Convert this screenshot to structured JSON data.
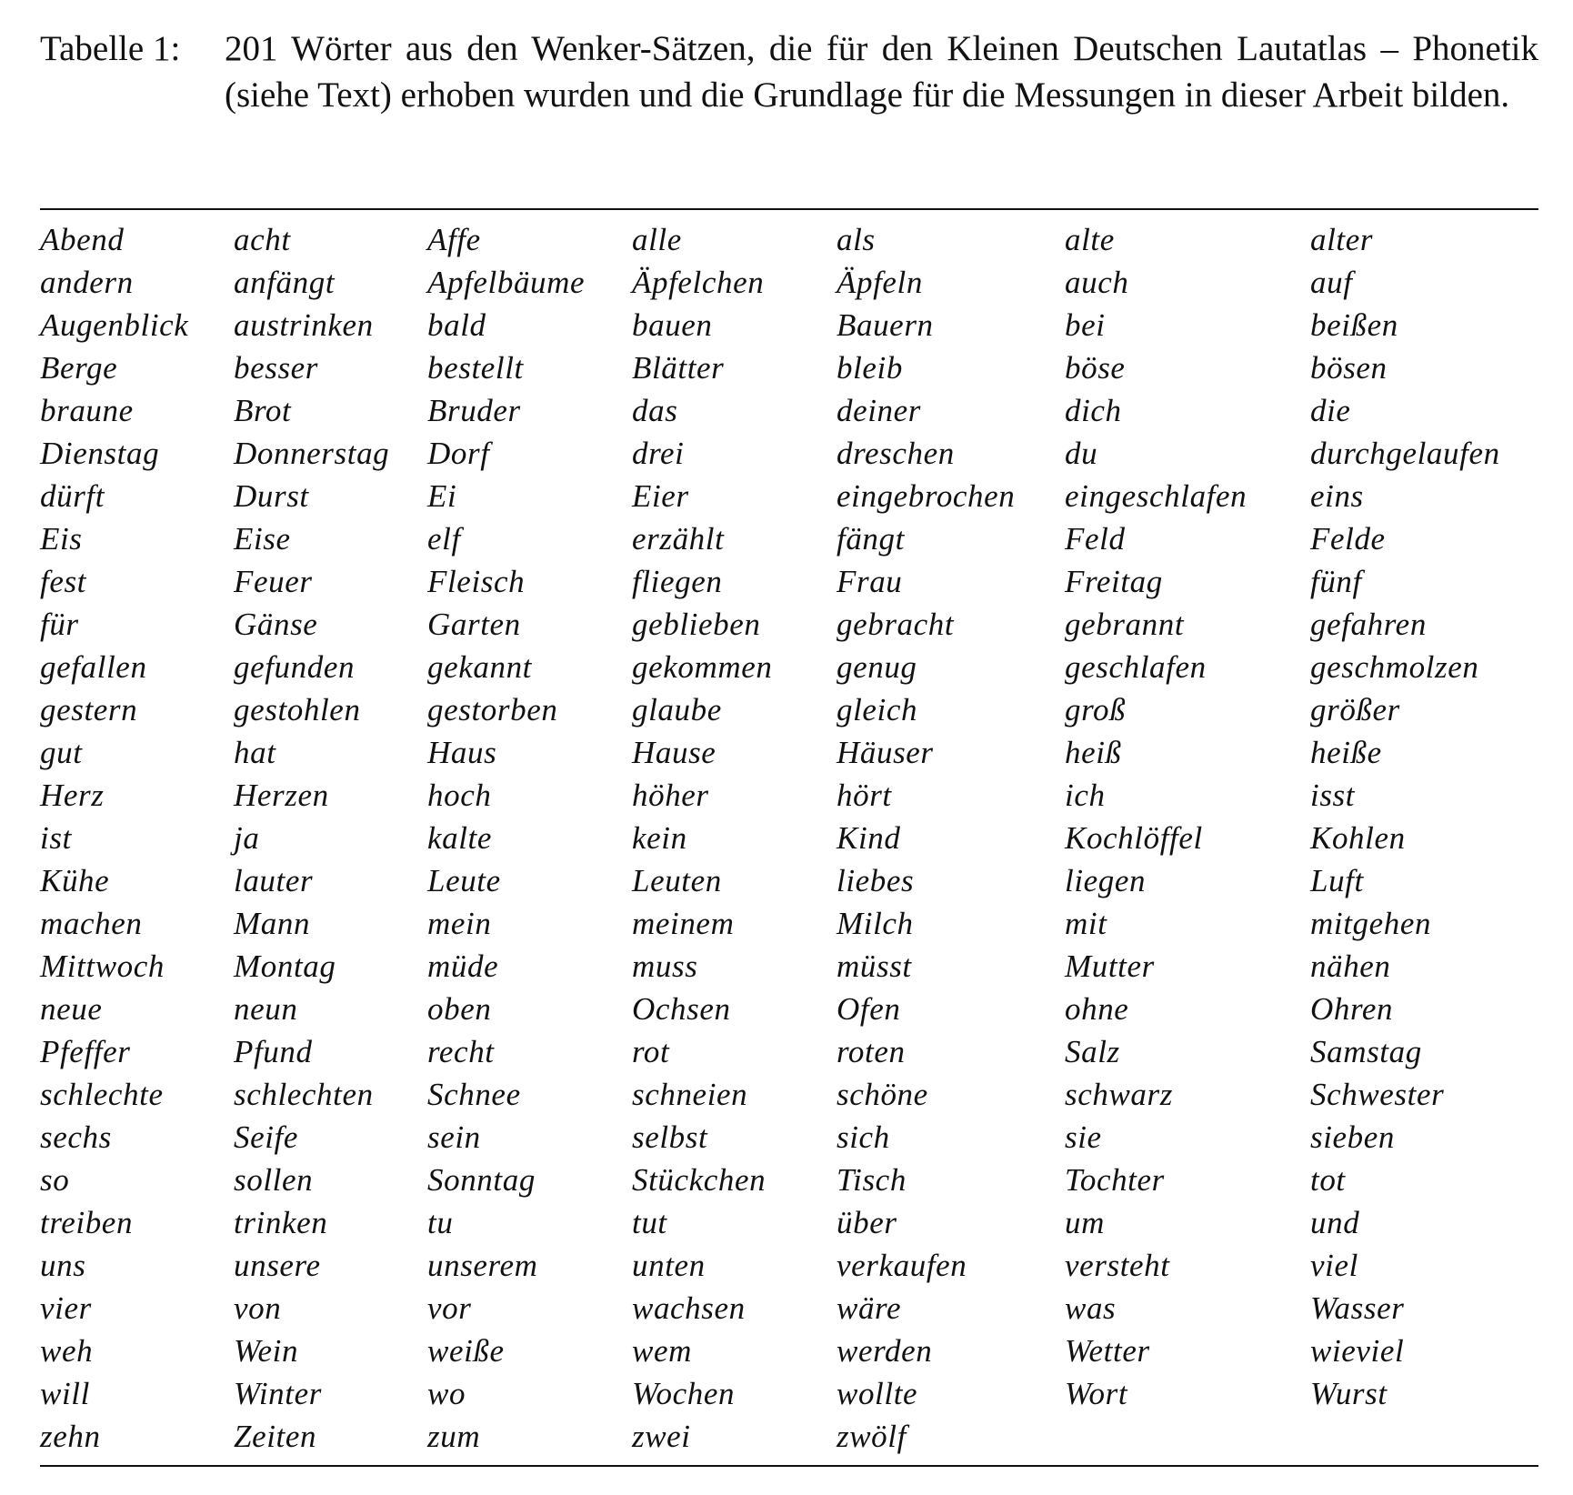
{
  "caption": {
    "label": "Tabelle 1:",
    "text": "201 Wörter aus den Wenker-Sätzen, die für den Kleinen Deutschen Lautatlas – Phonetik (siehe Text) erhoben wurden und die Grundlage für die Messungen in dieser Arbeit bilden."
  },
  "words": [
    [
      "Abend",
      "acht",
      "Affe",
      "alle",
      "als",
      "alte",
      "alter"
    ],
    [
      "andern",
      "anfängt",
      "Apfelbäume",
      "Äpfelchen",
      "Äpfeln",
      "auch",
      "auf"
    ],
    [
      "Augenblick",
      "austrinken",
      "bald",
      "bauen",
      "Bauern",
      "bei",
      "beißen"
    ],
    [
      "Berge",
      "besser",
      "bestellt",
      "Blätter",
      "bleib",
      "böse",
      "bösen"
    ],
    [
      "braune",
      "Brot",
      "Bruder",
      "das",
      "deiner",
      "dich",
      "die"
    ],
    [
      "Dienstag",
      "Donnerstag",
      "Dorf",
      "drei",
      "dreschen",
      "du",
      "durchgelaufen"
    ],
    [
      "dürft",
      "Durst",
      "Ei",
      "Eier",
      "eingebrochen",
      "eingeschlafen",
      "eins"
    ],
    [
      "Eis",
      "Eise",
      "elf",
      "erzählt",
      "fängt",
      "Feld",
      "Felde"
    ],
    [
      "fest",
      "Feuer",
      "Fleisch",
      "fliegen",
      "Frau",
      "Freitag",
      "fünf"
    ],
    [
      "für",
      "Gänse",
      "Garten",
      "geblieben",
      "gebracht",
      "gebrannt",
      "gefahren"
    ],
    [
      "gefallen",
      "gefunden",
      "gekannt",
      "gekommen",
      "genug",
      "geschlafen",
      "geschmolzen"
    ],
    [
      "gestern",
      "gestohlen",
      "gestorben",
      "glaube",
      "gleich",
      "groß",
      "größer"
    ],
    [
      "gut",
      "hat",
      "Haus",
      "Hause",
      "Häuser",
      "heiß",
      "heiße"
    ],
    [
      "Herz",
      "Herzen",
      "hoch",
      "höher",
      "hört",
      "ich",
      "isst"
    ],
    [
      "ist",
      "ja",
      "kalte",
      "kein",
      "Kind",
      "Kochlöffel",
      "Kohlen"
    ],
    [
      "Kühe",
      "lauter",
      "Leute",
      "Leuten",
      "liebes",
      "liegen",
      "Luft"
    ],
    [
      "machen",
      "Mann",
      "mein",
      "meinem",
      "Milch",
      "mit",
      "mitgehen"
    ],
    [
      "Mittwoch",
      "Montag",
      "müde",
      "muss",
      "müsst",
      "Mutter",
      "nähen"
    ],
    [
      "neue",
      "neun",
      "oben",
      "Ochsen",
      "Ofen",
      "ohne",
      "Ohren"
    ],
    [
      "Pfeffer",
      "Pfund",
      "recht",
      "rot",
      "roten",
      "Salz",
      "Samstag"
    ],
    [
      "schlechte",
      "schlechten",
      "Schnee",
      "schneien",
      "schöne",
      "schwarz",
      "Schwester"
    ],
    [
      "sechs",
      "Seife",
      "sein",
      "selbst",
      "sich",
      "sie",
      "sieben"
    ],
    [
      "so",
      "sollen",
      "Sonntag",
      "Stückchen",
      "Tisch",
      "Tochter",
      "tot"
    ],
    [
      "treiben",
      "trinken",
      "tu",
      "tut",
      "über",
      "um",
      "und"
    ],
    [
      "uns",
      "unsere",
      "unserem",
      "unten",
      "verkaufen",
      "versteht",
      "viel"
    ],
    [
      "vier",
      "von",
      "vor",
      "wachsen",
      "wäre",
      "was",
      "Wasser"
    ],
    [
      "weh",
      "Wein",
      "weiße",
      "wem",
      "werden",
      "Wetter",
      "wieviel"
    ],
    [
      "will",
      "Winter",
      "wo",
      "Wochen",
      "wollte",
      "Wort",
      "Wurst"
    ],
    [
      "zehn",
      "Zeiten",
      "zum",
      "zwei",
      "zwölf",
      "",
      ""
    ]
  ]
}
